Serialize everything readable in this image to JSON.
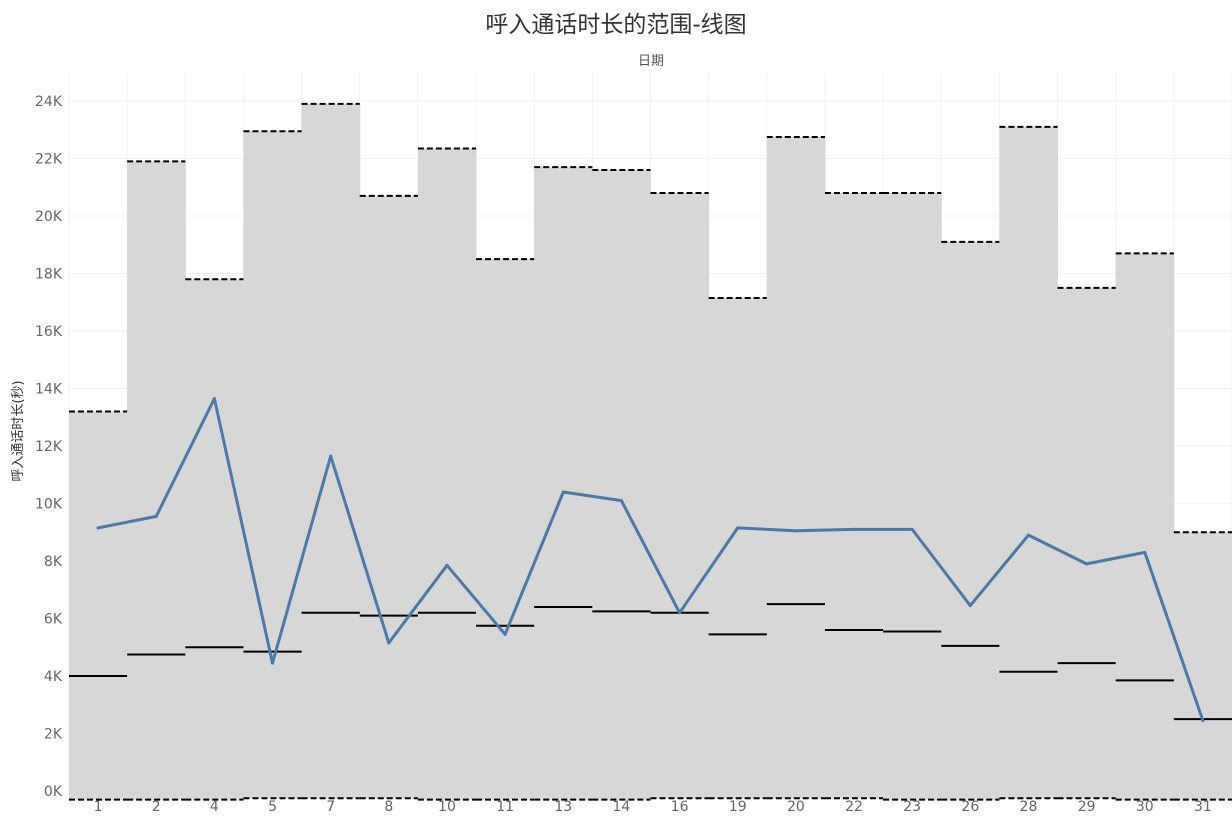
{
  "chart_data": {
    "type": "line",
    "title": "呼入通话时长的范围-线图",
    "subtitle": "日期",
    "ylabel": "呼入通话时长(秒)",
    "categories": [
      "1",
      "2",
      "4",
      "5",
      "7",
      "8",
      "10",
      "11",
      "13",
      "14",
      "16",
      "19",
      "20",
      "22",
      "23",
      "26",
      "28",
      "29",
      "30",
      "31"
    ],
    "ylim": [
      -300,
      25000
    ],
    "yticks": [
      0,
      2000,
      4000,
      6000,
      8000,
      10000,
      12000,
      14000,
      16000,
      18000,
      20000,
      22000,
      24000
    ],
    "ytick_labels": [
      "0K",
      "2K",
      "4K",
      "6K",
      "8K",
      "10K",
      "12K",
      "14K",
      "16K",
      "18K",
      "20K",
      "22K",
      "24K"
    ],
    "grid": true,
    "range_band": {
      "name": "range",
      "max": [
        13200,
        21900,
        17800,
        22950,
        23900,
        20700,
        22350,
        18500,
        21700,
        21600,
        20800,
        17150,
        22750,
        20800,
        20800,
        19100,
        23100,
        17500,
        18700,
        9000
      ],
      "min": [
        -300,
        -300,
        -300,
        -250,
        -250,
        -250,
        -300,
        -300,
        -300,
        -300,
        -250,
        -250,
        -250,
        -250,
        -300,
        -300,
        -250,
        -250,
        -300,
        -300
      ]
    },
    "series": [
      {
        "values": [
          9150,
          9550,
          13650,
          4450,
          11650,
          5150,
          7850,
          5450,
          10400,
          10100,
          6200,
          9150,
          9050,
          9100,
          9100,
          6450,
          8900,
          7900,
          8300,
          2450
        ]
      }
    ],
    "reference_line": {
      "values": [
        4000,
        4750,
        5000,
        4850,
        6200,
        6100,
        6200,
        5750,
        6400,
        6250,
        6200,
        5450,
        6500,
        5600,
        5550,
        5050,
        4150,
        4450,
        3850,
        2500
      ]
    },
    "colors": {
      "band": "#d7d7d7",
      "line": "#4e79a7",
      "marker": "#000000",
      "gridline": "#f1f1f1",
      "background": "#ffffff"
    }
  }
}
